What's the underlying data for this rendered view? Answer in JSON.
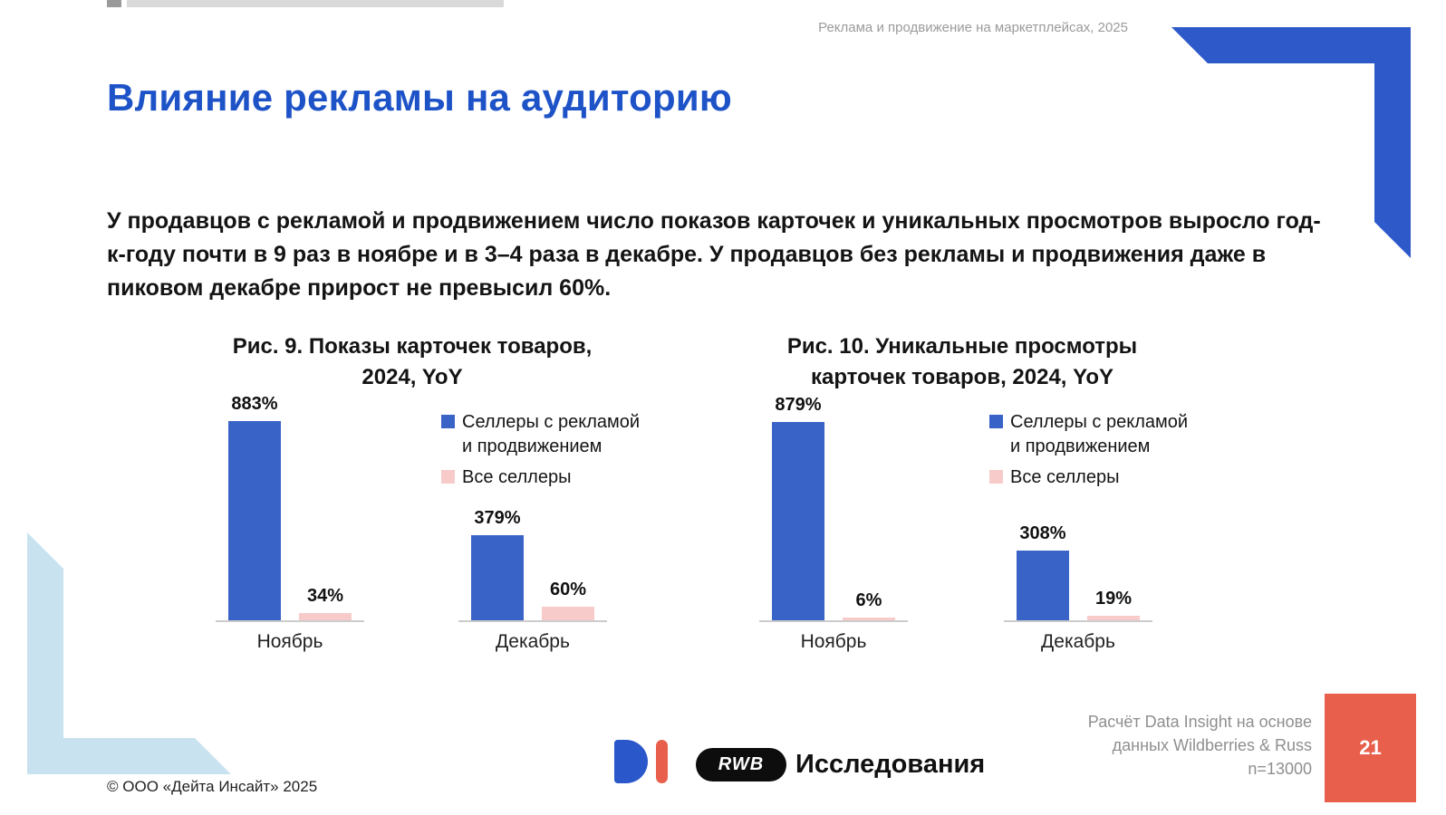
{
  "slide": {
    "header_note": "Реклама и продвижение на маркетплейсах, 2025",
    "title": "Влияние рекламы на аудиторию",
    "paragraph": "У продавцов с рекламой и продвижением число показов карточек и уникальных просмотров выросло год-к-году почти в 9 раз в ноябре и в 3–4 раза в декабре. У продавцов без рекламы и продвижения даже в пиковом декабре прирост не превысил 60%.",
    "copyright": "© ООО «Дейта Инсайт» 2025",
    "page_number": "21"
  },
  "footer": {
    "rwb_label": "RWB",
    "brand_text": "Исследования",
    "source_lines": [
      "Расчёт Data Insight на основе",
      "данных Wildberries & Russ",
      "n=13000"
    ]
  },
  "colors": {
    "title_blue": "#1e53c8",
    "bar_blue": "#3a63c8",
    "bar_pink": "#f6cbc9",
    "corner_blue": "#2e5ac9",
    "corner_light_blue": "#c9e2ef",
    "accent_orange": "#e8604c",
    "gray_text": "#9b9b9b"
  },
  "chart_data": [
    {
      "type": "bar",
      "title": "Рис. 9. Показы карточек товаров, 2024, YoY",
      "title_lines": [
        "Рис. 9. Показы карточек товаров,",
        "2024, YoY"
      ],
      "categories": [
        "Ноябрь",
        "Декабрь"
      ],
      "series": [
        {
          "name": "Селлеры с рекламой и продвижением",
          "color": "#3a63c8",
          "values": [
            883,
            379
          ]
        },
        {
          "name": "Все селлеры",
          "color": "#f6cbc9",
          "values": [
            34,
            60
          ]
        }
      ],
      "value_suffix": "%",
      "ylim": [
        0,
        900
      ],
      "grid": false,
      "legend_position": "inner-right-of-first-group"
    },
    {
      "type": "bar",
      "title": "Рис. 10. Уникальные просмотры карточек товаров, 2024, YoY",
      "title_lines": [
        "Рис. 10. Уникальные просмотры",
        "карточек товаров, 2024, YoY"
      ],
      "categories": [
        "Ноябрь",
        "Декабрь"
      ],
      "series": [
        {
          "name": "Селлеры с рекламой и продвижением",
          "color": "#3a63c8",
          "values": [
            879,
            308
          ]
        },
        {
          "name": "Все селлеры",
          "color": "#f6cbc9",
          "values": [
            6,
            19
          ]
        }
      ],
      "value_suffix": "%",
      "ylim": [
        0,
        900
      ],
      "grid": false,
      "legend_position": "inner-right-of-first-group"
    }
  ]
}
